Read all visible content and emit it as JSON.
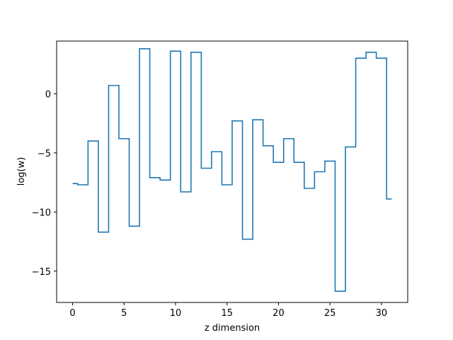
{
  "chart_data": {
    "type": "line",
    "drawstyle": "steps-mid",
    "xlabel": "z dimension",
    "ylabel": "log(w)",
    "xlim": [
      -1.55,
      32.55
    ],
    "ylim": [
      -17.65,
      4.45
    ],
    "xticks": [
      0,
      5,
      10,
      15,
      20,
      25,
      30
    ],
    "xtick_labels": [
      "0",
      "5",
      "10",
      "15",
      "20",
      "25",
      "30"
    ],
    "yticks": [
      -15,
      -10,
      -5,
      0
    ],
    "ytick_labels": [
      "−15",
      "−10",
      "−5",
      "0"
    ],
    "grid": false,
    "legend": "none",
    "series": [
      {
        "color": "#1f77b4",
        "x": [
          0,
          1,
          2,
          3,
          4,
          5,
          6,
          7,
          8,
          9,
          10,
          11,
          12,
          13,
          14,
          15,
          16,
          17,
          18,
          19,
          20,
          21,
          22,
          23,
          24,
          25,
          26,
          27,
          28,
          29,
          30,
          31
        ],
        "values": [
          -7.6,
          -7.7,
          -4.0,
          -11.7,
          0.7,
          -3.8,
          -11.2,
          3.8,
          -7.1,
          -7.3,
          3.6,
          -8.3,
          3.5,
          -6.3,
          -4.9,
          -7.7,
          -2.3,
          -12.3,
          -2.2,
          -4.4,
          -5.8,
          -3.8,
          -5.8,
          -8.0,
          -6.6,
          -5.7,
          -16.7,
          -4.5,
          3.0,
          3.5,
          3.0,
          -8.9
        ]
      }
    ]
  }
}
